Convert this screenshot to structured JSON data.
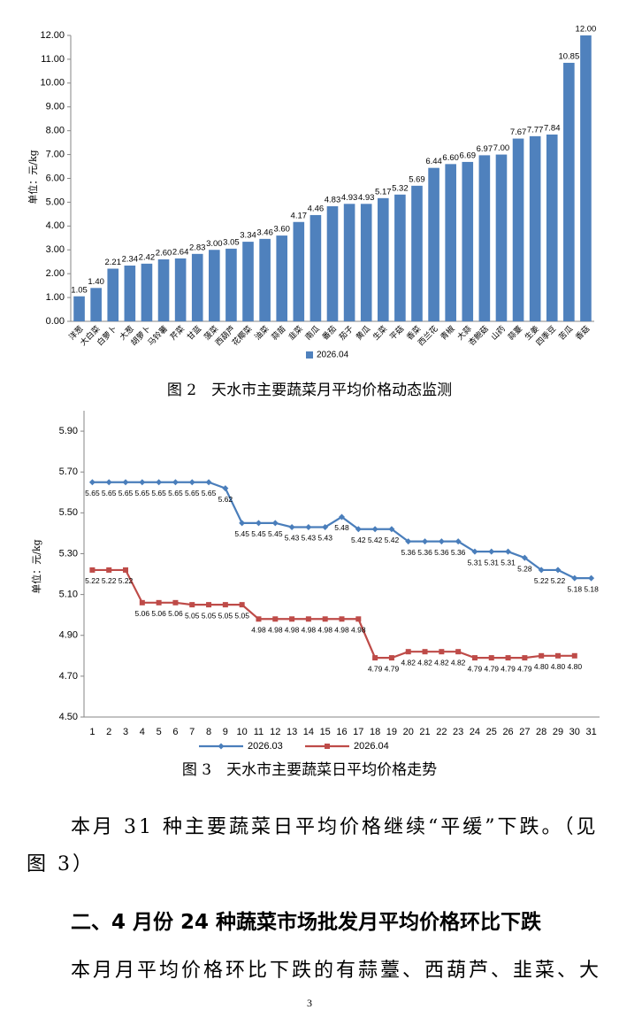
{
  "chart_data": [
    {
      "type": "bar",
      "y_label": "单位：元/kg",
      "categories": [
        "洋葱",
        "大白菜",
        "白萝卜",
        "大葱",
        "胡萝卜",
        "马铃薯",
        "芹菜",
        "甘蓝",
        "菠菜",
        "西葫芦",
        "花椰菜",
        "油菜",
        "蒜苗",
        "韭菜",
        "南瓜",
        "番茄",
        "茄子",
        "黄瓜",
        "生菜",
        "平菇",
        "香菜",
        "西兰花",
        "青椒",
        "大蒜",
        "杏鲍菇",
        "山药",
        "蒜薹",
        "生姜",
        "四季豆",
        "苦瓜",
        "香菇"
      ],
      "series": [
        {
          "name": "2026.04",
          "color": "#4f81bd",
          "values": [
            1.05,
            1.4,
            2.21,
            2.34,
            2.42,
            2.6,
            2.64,
            2.83,
            3,
            3.05,
            3.34,
            3.46,
            3.6,
            4.17,
            4.46,
            4.83,
            4.93,
            4.93,
            5.17,
            5.32,
            5.69,
            6.44,
            6.6,
            6.69,
            6.97,
            7,
            7.67,
            7.77,
            7.84,
            10.85,
            12
          ],
          "value_labels": [
            "1.05",
            "1.40",
            "2.21",
            "2.34",
            "2.42",
            "2.60",
            "2.64",
            "2.83",
            "3.00",
            "3.05",
            "3.34",
            "3.46",
            "3.60",
            "4.17",
            "4.46",
            "4.83",
            "4.93",
            "4.93",
            "5.17",
            "5.32",
            "5.69",
            "6.44",
            "6.60",
            "6.69",
            "6.97",
            "7.00",
            "7.67",
            "7.77",
            "7.84",
            "10.85",
            "12.00"
          ]
        }
      ],
      "ylim": [
        0,
        12
      ],
      "yticks": [
        {
          "value": 0,
          "label": "0.00"
        },
        {
          "value": 1,
          "label": "1.00"
        },
        {
          "value": 2,
          "label": "2.00"
        },
        {
          "value": 3,
          "label": "3.00"
        },
        {
          "value": 4,
          "label": "4.00"
        },
        {
          "value": 5,
          "label": "5.00"
        },
        {
          "value": 6,
          "label": "6.00"
        },
        {
          "value": 7,
          "label": "7.00"
        },
        {
          "value": 8,
          "label": "8.00"
        },
        {
          "value": 9,
          "label": "9.00"
        },
        {
          "value": 10,
          "label": "10.00"
        },
        {
          "value": 11,
          "label": "11.00"
        },
        {
          "value": 12,
          "label": "12.00"
        }
      ],
      "grid": false,
      "legend": "bottom"
    },
    {
      "type": "line",
      "y_label": "单位：元/kg",
      "categories": [
        1,
        2,
        3,
        4,
        5,
        6,
        7,
        8,
        9,
        10,
        11,
        12,
        13,
        14,
        15,
        16,
        17,
        18,
        19,
        20,
        21,
        22,
        23,
        24,
        25,
        26,
        27,
        28,
        29,
        30,
        31
      ],
      "series": [
        {
          "name": "2026.03",
          "color": "#4a7ebb",
          "marker": "diamond",
          "values": [
            5.65,
            5.65,
            5.65,
            5.65,
            5.65,
            5.65,
            5.65,
            5.65,
            5.62,
            5.45,
            5.45,
            5.45,
            5.43,
            5.43,
            5.43,
            5.48,
            5.42,
            5.42,
            5.42,
            5.36,
            5.36,
            5.36,
            5.36,
            5.31,
            5.31,
            5.31,
            5.28,
            5.22,
            5.22,
            5.18,
            5.18
          ],
          "value_labels": [
            "5.65",
            "5.65",
            "5.65",
            "5.65",
            "5.65",
            "5.65",
            "5.65",
            "5.65",
            "5.62",
            "5.45",
            "5.45",
            "5.45",
            "5.43",
            "5.43",
            "5.43",
            "5.48",
            "5.42",
            "5.42",
            "5.42",
            "5.36",
            "5.36",
            "5.36",
            "5.36",
            "5.31",
            "5.31",
            "5.31",
            "5.28",
            "5.22",
            "5.22",
            "5.18",
            "5.18"
          ]
        },
        {
          "name": "2026.04",
          "color": "#be4b48",
          "marker": "square",
          "values": [
            5.22,
            5.22,
            5.22,
            5.06,
            5.06,
            5.06,
            5.05,
            5.05,
            5.05,
            5.05,
            4.98,
            4.98,
            4.98,
            4.98,
            4.98,
            4.98,
            4.98,
            4.79,
            4.79,
            4.82,
            4.82,
            4.82,
            4.82,
            4.79,
            4.79,
            4.79,
            4.79,
            4.8,
            4.8,
            4.8,
            null
          ],
          "value_labels": [
            "5.22",
            "5.22",
            "5.22",
            "5.06",
            "5.06",
            "5.06",
            "5.05",
            "5.05",
            "5.05",
            "5.05",
            "4.98",
            "4.98",
            "4.98",
            "4.98",
            "4.98",
            "4.98",
            "4.98",
            "4.79",
            "4.79",
            "4.82",
            "4.82",
            "4.82",
            "4.82",
            "4.79",
            "4.79",
            "4.79",
            "4.79",
            "4.80",
            "4.80",
            "4.80",
            null
          ]
        }
      ],
      "ylim": [
        4.5,
        6.0
      ],
      "yticks": [
        {
          "value": 4.5,
          "label": "4.50"
        },
        {
          "value": 4.7,
          "label": "4.70"
        },
        {
          "value": 4.9,
          "label": "4.90"
        },
        {
          "value": 5.1,
          "label": "5.10"
        },
        {
          "value": 5.3,
          "label": "5.30"
        },
        {
          "value": 5.5,
          "label": "5.50"
        },
        {
          "value": 5.7,
          "label": "5.70"
        },
        {
          "value": 5.9,
          "label": "5.90"
        }
      ],
      "grid": false,
      "legend": "bottom"
    }
  ],
  "document": {
    "caption_1": "图 2　天水市主要蔬菜月平均价格动态监测",
    "caption_2": "图 3　天水市主要蔬菜日平均价格走势",
    "paragraph_1": "本月 31 种主要蔬菜日平均价格继续“平缓”下跌。（见图 3）",
    "heading": "二、4 月份 24 种蔬菜市场批发月平均价格环比下跌",
    "paragraph_2": "本月月平均价格环比下跌的有蒜薹、西葫芦、韭菜、大",
    "page_number": "3"
  }
}
